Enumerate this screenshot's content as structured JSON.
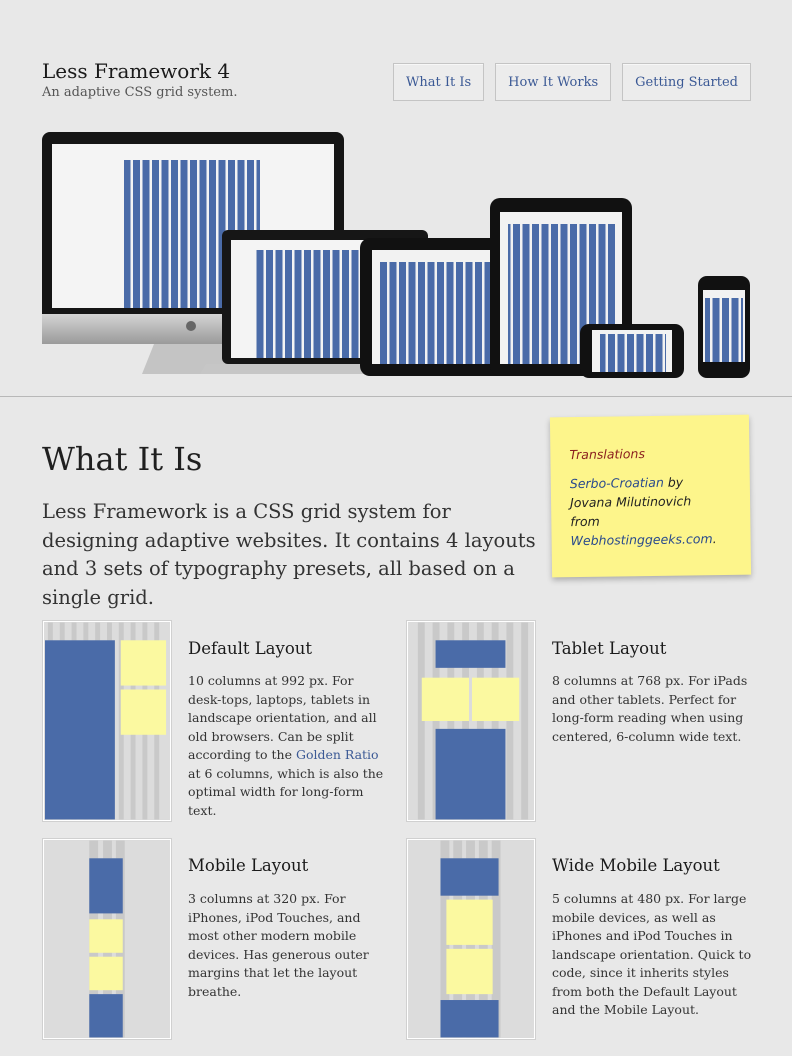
{
  "header": {
    "title": "Less Framework 4",
    "tagline": "An adaptive CSS grid system."
  },
  "nav": [
    {
      "label": "What It Is"
    },
    {
      "label": "How It Works"
    },
    {
      "label": "Getting Started"
    }
  ],
  "section": {
    "heading": "What It Is",
    "intro": "Less Framework is a CSS grid system for designing adaptive websites. It contains 4 layouts and 3 sets of typography presets, all based on a single grid."
  },
  "translations": {
    "title": "Translations",
    "link_text": "Serbo-Croatian",
    "by": " by",
    "author": "Jovana Milutinovich",
    "from": "from",
    "site": "Webhostinggeeks.com",
    "period": "."
  },
  "layouts": [
    {
      "title": "Default Layout",
      "desc_before": "10 columns at 992 px. For desk-tops, laptops, tablets in landscape orientation, and all old browsers. Can be split according to the ",
      "desc_link": "Golden Ratio",
      "desc_after": " at 6 columns, which is also the optimal width for long-form text."
    },
    {
      "title": "Tablet Layout",
      "desc": "8 columns at 768 px. For iPads and other tablets. Perfect for long-form reading when using centered, 6-column wide text."
    },
    {
      "title": "Mobile Layout",
      "desc": "3 columns at 320 px. For iPhones, iPod Touches, and most other modern mobile devices. Has generous outer margins that let the layout breathe."
    },
    {
      "title": "Wide Mobile Layout",
      "desc": "5 columns at 480 px. For large mobile devices, as well as iPhones and iPod Touches in landscape orientation. Quick to code, since it inherits styles from both the Default Layout and the Mobile Layout."
    }
  ],
  "colors": {
    "grid_blue": "#4a6ba8",
    "grid_yellow": "#fbf9a0",
    "link": "#3b5995"
  }
}
